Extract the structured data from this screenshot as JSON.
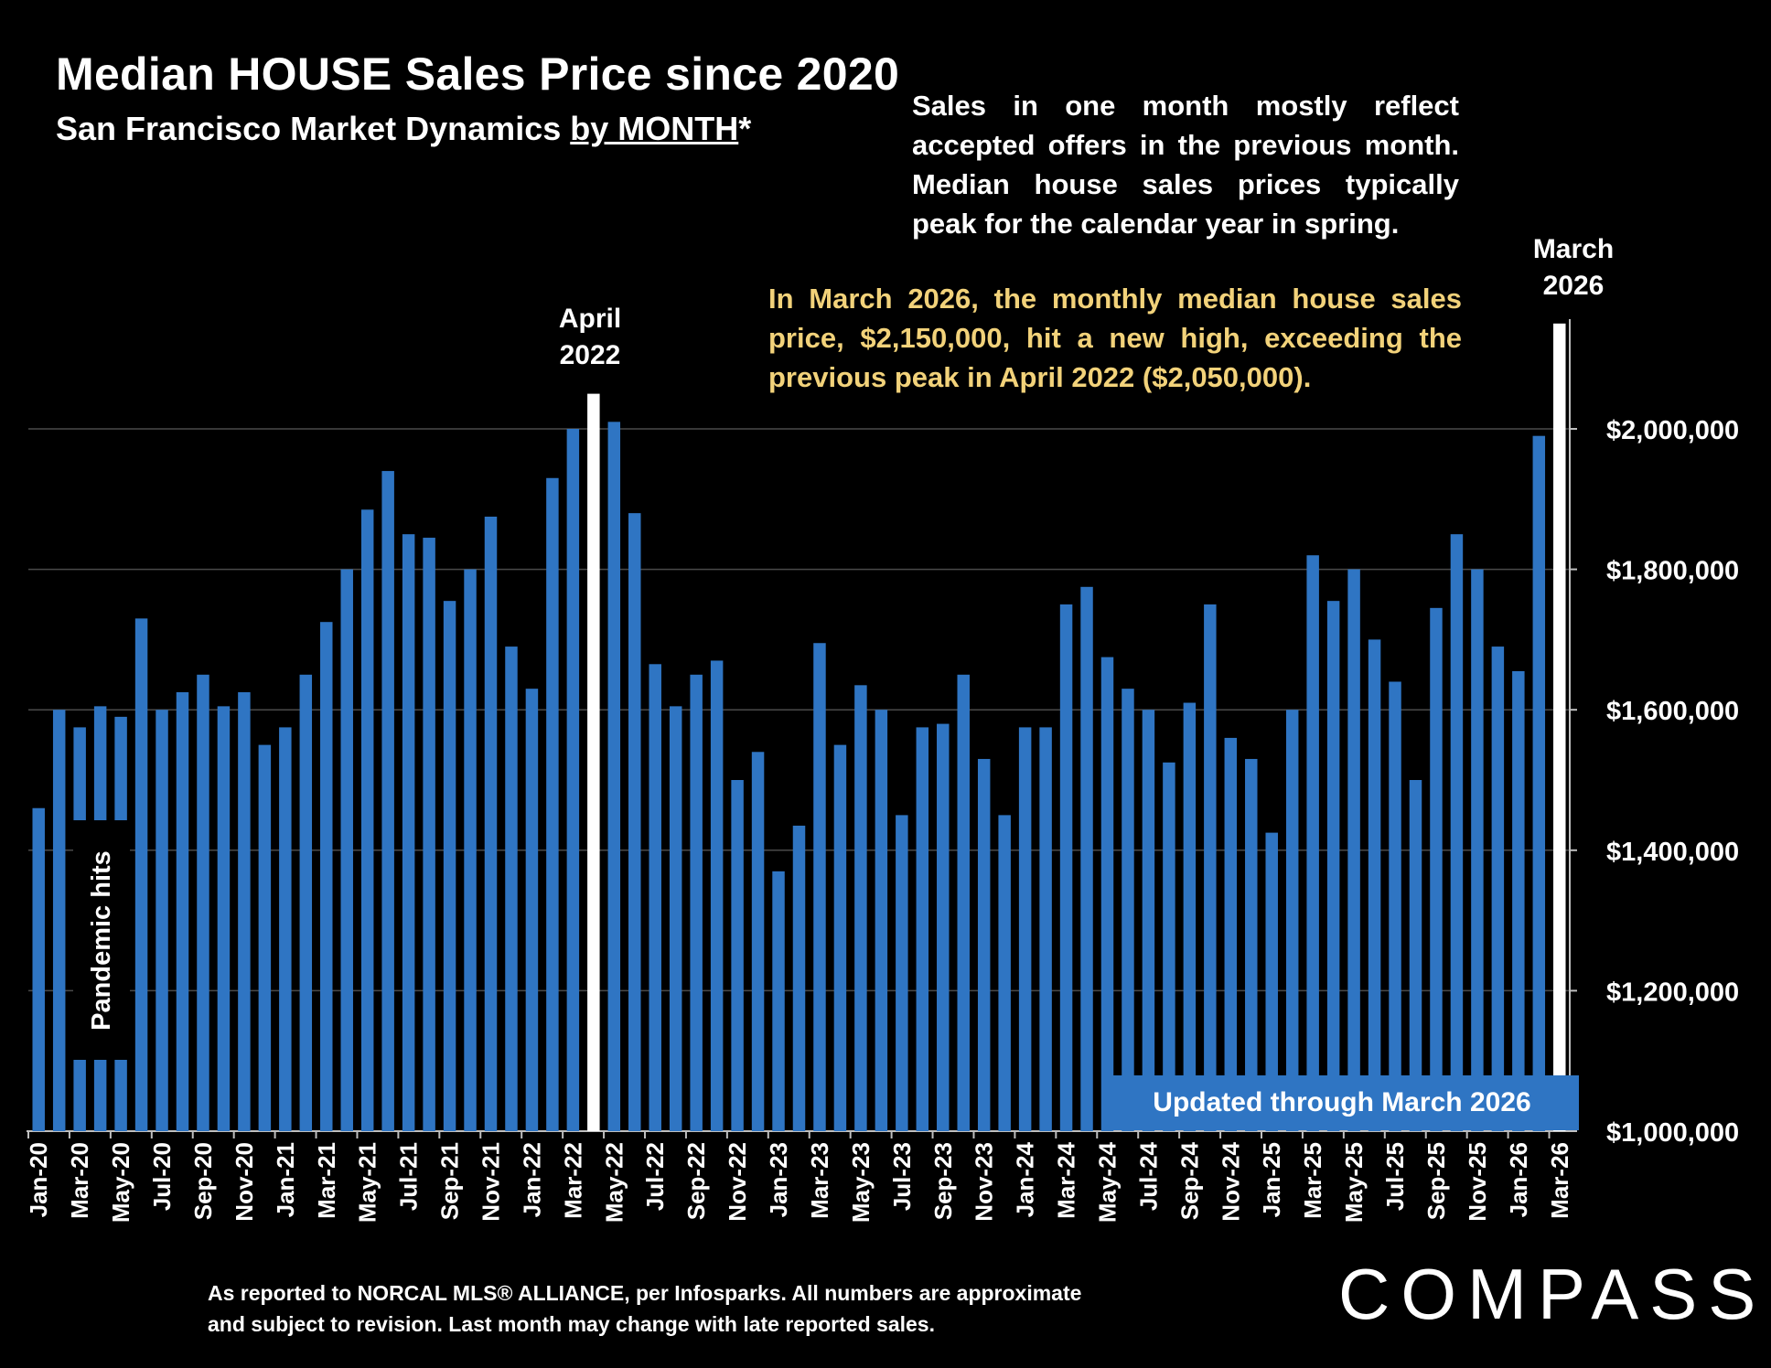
{
  "title": "Median HOUSE Sales Price since 2020",
  "subtitle_main": "San Francisco Market Dynamics ",
  "subtitle_underlined": "by MONTH",
  "subtitle_suffix": "*",
  "note": "Sales in one month mostly reflect accepted offers in the previous month. Median house sales prices typically peak for the calendar year in spring.",
  "highlight_note": "In March 2026, the monthly median house sales price, $2,150,000, hit a new high, exceeding the previous peak in April 2022 ($2,050,000).",
  "peak_labels": {
    "april_2022_line1": "April",
    "april_2022_line2": "2022",
    "march_2026_line1": "March",
    "march_2026_line2": "2026"
  },
  "pandemic_label": "Pandemic hits",
  "updated_label": "Updated through March 2026",
  "footnote_line1": "As reported to NORCAL MLS® ALLIANCE, per Infosparks. All numbers are approximate",
  "footnote_line2": "and subject to revision. Last month may change with late reported sales.",
  "logo": "COMPASS",
  "colors": {
    "bar": "#2f75c3",
    "highlight_bar": "#ffffff",
    "highlight_text": "#f2d27a",
    "background": "#000000"
  },
  "chart_data": {
    "type": "bar",
    "ylim": [
      1000000,
      2150000
    ],
    "yticks": [
      {
        "value": 1000000,
        "label": "$1,000,000"
      },
      {
        "value": 1200000,
        "label": "$1,200,000"
      },
      {
        "value": 1400000,
        "label": "$1,400,000"
      },
      {
        "value": 1600000,
        "label": "$1,600,000"
      },
      {
        "value": 1800000,
        "label": "$1,800,000"
      },
      {
        "value": 2000000,
        "label": "$2,000,000"
      }
    ],
    "grid": true,
    "xtick_labels": [
      "Jan-20",
      "Mar-20",
      "May-20",
      "Jul-20",
      "Sep-20",
      "Nov-20",
      "Jan-21",
      "Mar-21",
      "May-21",
      "Jul-21",
      "Sep-21",
      "Nov-21",
      "Jan-22",
      "Mar-22",
      "May-22",
      "Jul-22",
      "Sep-22",
      "Nov-22",
      "Jan-23",
      "Mar-23",
      "May-23",
      "Jul-23",
      "Sep-23",
      "Nov-23",
      "Jan-24",
      "Mar-24",
      "May-24",
      "Jul-24",
      "Sep-24",
      "Nov-24",
      "Jan-25",
      "Mar-25",
      "May-25",
      "Jul-25",
      "Sep-25",
      "Nov-25",
      "Jan-26",
      "Mar-26"
    ],
    "highlighted_months": [
      "Apr-22",
      "Mar-26"
    ],
    "months": [
      "Jan-20",
      "Feb-20",
      "Mar-20",
      "Apr-20",
      "May-20",
      "Jun-20",
      "Jul-20",
      "Aug-20",
      "Sep-20",
      "Oct-20",
      "Nov-20",
      "Dec-20",
      "Jan-21",
      "Feb-21",
      "Mar-21",
      "Apr-21",
      "May-21",
      "Jun-21",
      "Jul-21",
      "Aug-21",
      "Sep-21",
      "Oct-21",
      "Nov-21",
      "Dec-21",
      "Jan-22",
      "Feb-22",
      "Mar-22",
      "Apr-22",
      "May-22",
      "Jun-22",
      "Jul-22",
      "Aug-22",
      "Sep-22",
      "Oct-22",
      "Nov-22",
      "Dec-22",
      "Jan-23",
      "Feb-23",
      "Mar-23",
      "Apr-23",
      "May-23",
      "Jun-23",
      "Jul-23",
      "Aug-23",
      "Sep-23",
      "Oct-23",
      "Nov-23",
      "Dec-23",
      "Jan-24",
      "Feb-24",
      "Mar-24",
      "Apr-24",
      "May-24",
      "Jun-24",
      "Jul-24",
      "Aug-24",
      "Sep-24",
      "Oct-24",
      "Nov-24",
      "Dec-24",
      "Jan-25",
      "Feb-25",
      "Mar-25",
      "Apr-25",
      "May-25",
      "Jun-25",
      "Jul-25",
      "Aug-25",
      "Sep-25",
      "Oct-25",
      "Nov-25",
      "Dec-25",
      "Jan-26",
      "Feb-26",
      "Mar-26"
    ],
    "values": [
      1460000,
      1600000,
      1575000,
      1605000,
      1590000,
      1730000,
      1600000,
      1625000,
      1650000,
      1605000,
      1625000,
      1550000,
      1575000,
      1650000,
      1725000,
      1800000,
      1885000,
      1940000,
      1850000,
      1845000,
      1755000,
      1800000,
      1875000,
      1690000,
      1630000,
      1930000,
      2000000,
      2050000,
      2010000,
      1880000,
      1665000,
      1605000,
      1650000,
      1670000,
      1500000,
      1540000,
      1370000,
      1435000,
      1695000,
      1550000,
      1635000,
      1600000,
      1450000,
      1575000,
      1580000,
      1650000,
      1530000,
      1450000,
      1575000,
      1575000,
      1750000,
      1775000,
      1675000,
      1630000,
      1600000,
      1525000,
      1610000,
      1750000,
      1560000,
      1530000,
      1425000,
      1600000,
      1820000,
      1755000,
      1800000,
      1700000,
      1640000,
      1500000,
      1745000,
      1850000,
      1800000,
      1690000,
      1655000,
      1990000,
      2150000
    ]
  }
}
